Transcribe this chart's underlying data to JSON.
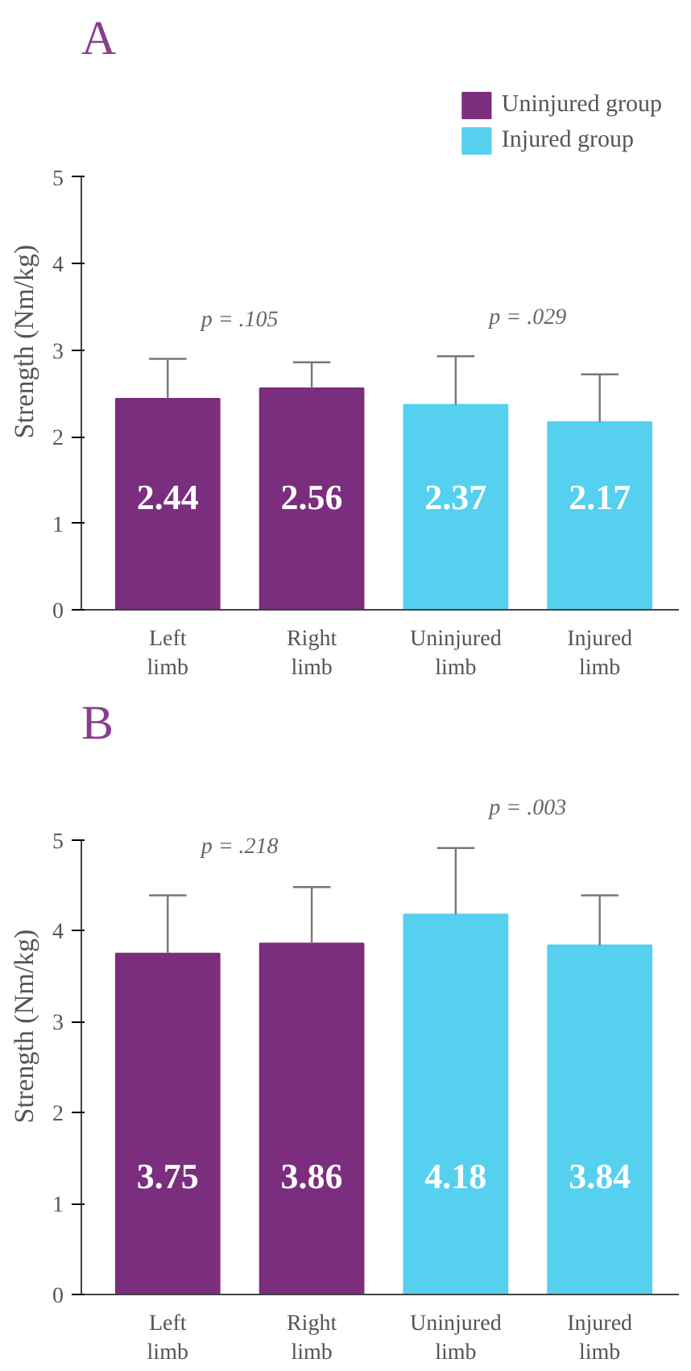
{
  "chart_data": [
    {
      "type": "bar",
      "title": "A",
      "ylabel": "Strength (Nm/kg)",
      "categories": [
        "Left limb",
        "Right limb",
        "Uninjured limb",
        "Injured limb"
      ],
      "series": [
        {
          "name": "Uninjured group",
          "color": "#7b2d7e",
          "values": [
            2.44,
            2.56,
            null,
            null
          ],
          "errors": [
            [
              2.44,
              2.9
            ],
            [
              2.56,
              2.86
            ],
            null,
            null
          ]
        },
        {
          "name": "Injured group",
          "color": "#55d0ee",
          "values": [
            null,
            null,
            2.37,
            2.17
          ],
          "errors": [
            null,
            null,
            [
              2.37,
              2.93
            ],
            [
              2.17,
              2.72
            ]
          ]
        }
      ],
      "ylim": [
        0,
        5
      ],
      "yticks": [
        0,
        1,
        2,
        3,
        4,
        5
      ],
      "data_labels": true,
      "legend": "top right",
      "grid": false,
      "annotations": [
        "p = .105",
        "p = .029"
      ]
    },
    {
      "type": "bar",
      "title": "B",
      "ylabel": "Strength (Nm/kg)",
      "categories": [
        "Left limb",
        "Right limb",
        "Uninjured limb",
        "Injured limb"
      ],
      "series": [
        {
          "color": "#7b2d7e",
          "values": [
            3.75,
            3.86,
            null,
            null
          ],
          "errors": [
            [
              3.75,
              4.39
            ],
            [
              3.86,
              4.48
            ],
            null,
            null
          ]
        },
        {
          "color": "#55d0ee",
          "values": [
            null,
            null,
            4.18,
            3.84
          ],
          "errors": [
            null,
            null,
            [
              4.18,
              4.91
            ],
            [
              3.84,
              4.39
            ]
          ]
        }
      ],
      "ylim": [
        0,
        5
      ],
      "yticks": [
        0,
        1,
        2,
        3,
        4,
        5
      ],
      "data_labels": true,
      "legend": false,
      "grid": false,
      "annotations": [
        "p = .218",
        "p = .003"
      ]
    }
  ]
}
